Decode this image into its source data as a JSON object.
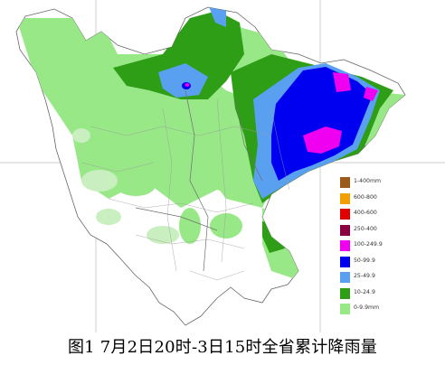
{
  "legend": [
    {
      "label": "1-400mm",
      "color": "#9b5a1a"
    },
    {
      "label": "600-800",
      "color": "#f0a000"
    },
    {
      "label": "400-600",
      "color": "#e00000"
    },
    {
      "label": "250-400",
      "color": "#8a0040"
    },
    {
      "label": "100-249.9",
      "color": "#f000f0"
    },
    {
      "label": "50-99.9",
      "color": "#0000f0"
    },
    {
      "label": "25-49.9",
      "color": "#5aa0f0"
    },
    {
      "label": "10-24.9",
      "color": "#2e9e16"
    },
    {
      "label": "0-9.9mm",
      "color": "#98e888"
    }
  ],
  "caption": "图1  7月2日20时-3日15时全省累计降雨量",
  "grid_ticks": {
    "top_left": "",
    "top_right": ""
  }
}
